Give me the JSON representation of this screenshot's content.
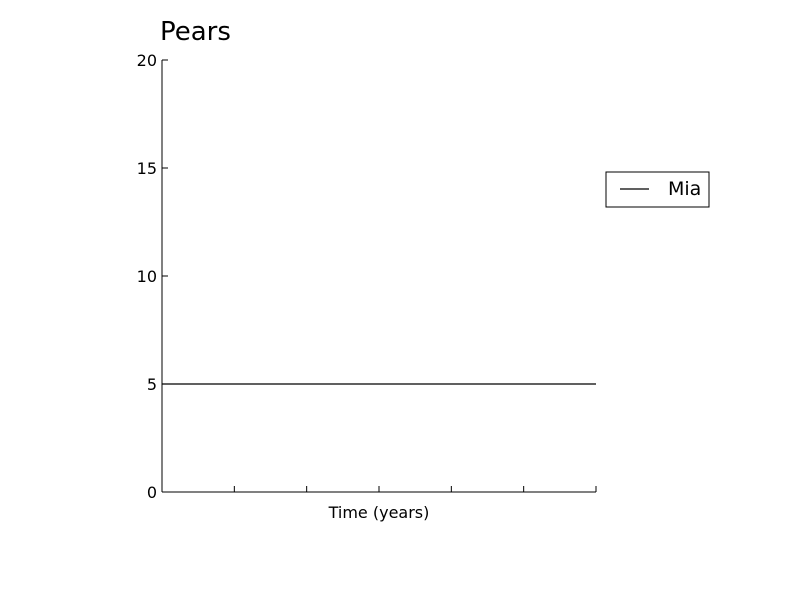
{
  "chart_data": {
    "type": "line",
    "title": "Pears",
    "xlabel": "Time (years)",
    "ylabel": "",
    "ylim": [
      0,
      20
    ],
    "yticks": [
      0,
      5,
      10,
      15,
      20
    ],
    "xlim": [
      0,
      6
    ],
    "xticks": [
      0,
      1,
      2,
      3,
      4,
      5,
      6
    ],
    "x_tick_labels_shown": false,
    "grid": false,
    "legend_position": "right",
    "series": [
      {
        "name": "Mia",
        "color": "#000000",
        "x": [
          0,
          6
        ],
        "values": [
          5,
          5
        ]
      }
    ]
  }
}
